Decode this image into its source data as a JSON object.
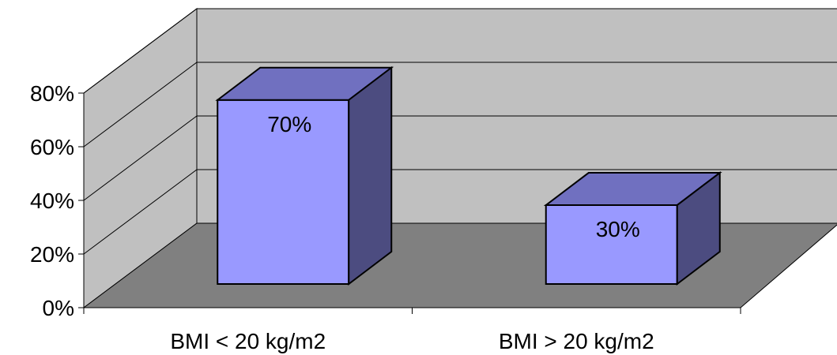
{
  "chart_data": {
    "type": "bar",
    "categories": [
      "BMI < 20 kg/m2",
      "BMI > 20 kg/m2"
    ],
    "values": [
      70,
      30
    ],
    "data_labels": [
      "70%",
      "30%"
    ],
    "ylim": [
      0,
      80
    ],
    "yticks": [
      0,
      20,
      40,
      60,
      80
    ],
    "ytick_labels": [
      "0%",
      "20%",
      "40%",
      "60%",
      "80%"
    ],
    "grid": true,
    "legend": "none",
    "style": "3d",
    "colors": {
      "bar_front": "#9999FF",
      "bar_top": "#7070C0",
      "bar_side": "#4C4C80",
      "back_wall": "#C0C0C0",
      "side_wall": "#C0C0C0",
      "floor": "#808080",
      "gridline": "#000000"
    }
  }
}
